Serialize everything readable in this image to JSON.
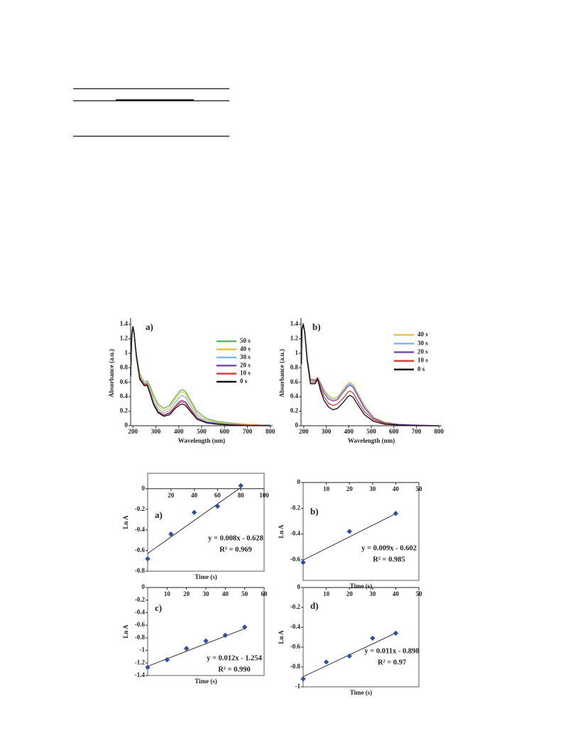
{
  "chart_data": [
    {
      "type": "line",
      "title": "a)",
      "x_label": "Wavelength (nm)",
      "y_label": "Absorbance (a.u.)",
      "x": [
        190,
        195,
        200,
        205,
        215,
        230,
        250,
        262,
        275,
        290,
        310,
        335,
        360,
        385,
        405,
        415,
        430,
        450,
        480,
        520,
        570,
        620,
        700,
        800
      ],
      "xlim": [
        190,
        810
      ],
      "xticks": [
        200,
        300,
        400,
        500,
        600,
        700,
        800
      ],
      "ylim": [
        0,
        1.45
      ],
      "yticks": [
        0,
        0.2,
        0.4,
        0.6,
        0.8,
        1,
        1.2,
        1.4
      ],
      "series": [
        {
          "name": "50 s",
          "color": "#5cb85c",
          "values": [
            0.75,
            1.3,
            1.38,
            1.3,
            1.0,
            0.72,
            0.6,
            0.62,
            0.55,
            0.42,
            0.3,
            0.24,
            0.28,
            0.4,
            0.48,
            0.5,
            0.47,
            0.36,
            0.2,
            0.1,
            0.06,
            0.04,
            0.02,
            0.01
          ]
        },
        {
          "name": "40 s",
          "color": "#e3c447",
          "values": [
            0.72,
            1.28,
            1.38,
            1.3,
            1.0,
            0.7,
            0.6,
            0.6,
            0.52,
            0.38,
            0.27,
            0.21,
            0.25,
            0.37,
            0.45,
            0.47,
            0.44,
            0.33,
            0.17,
            0.08,
            0.05,
            0.03,
            0.02,
            0.01
          ]
        },
        {
          "name": "30 s",
          "color": "#86b8e6",
          "values": [
            0.7,
            1.26,
            1.38,
            1.3,
            0.98,
            0.68,
            0.58,
            0.58,
            0.49,
            0.34,
            0.23,
            0.18,
            0.21,
            0.32,
            0.4,
            0.42,
            0.39,
            0.29,
            0.14,
            0.06,
            0.04,
            0.02,
            0.01,
            0.01
          ]
        },
        {
          "name": "20 s",
          "color": "#7b4fa8",
          "values": [
            0.7,
            1.25,
            1.37,
            1.29,
            0.97,
            0.66,
            0.57,
            0.58,
            0.46,
            0.31,
            0.2,
            0.15,
            0.18,
            0.27,
            0.34,
            0.35,
            0.33,
            0.24,
            0.11,
            0.05,
            0.03,
            0.02,
            0.01,
            0
          ]
        },
        {
          "name": "10 s",
          "color": "#d9403a",
          "values": [
            0.69,
            1.24,
            1.37,
            1.28,
            0.96,
            0.65,
            0.56,
            0.57,
            0.45,
            0.3,
            0.19,
            0.14,
            0.17,
            0.26,
            0.32,
            0.33,
            0.31,
            0.22,
            0.1,
            0.04,
            0.02,
            0.01,
            0.01,
            0
          ]
        },
        {
          "name": "0 s",
          "color": "#111111",
          "values": [
            0.68,
            1.23,
            1.37,
            1.28,
            0.95,
            0.64,
            0.55,
            0.56,
            0.44,
            0.29,
            0.18,
            0.13,
            0.15,
            0.24,
            0.29,
            0.3,
            0.28,
            0.2,
            0.09,
            0.04,
            0.02,
            0.01,
            0,
            0
          ]
        }
      ]
    },
    {
      "type": "line",
      "title": "b)",
      "x_label": "Wavelength (nm)",
      "y_label": "Absorbance (a.u.)",
      "x": [
        190,
        192,
        198,
        205,
        215,
        230,
        250,
        262,
        275,
        290,
        310,
        330,
        350,
        375,
        395,
        405,
        420,
        440,
        470,
        510,
        560,
        620,
        700,
        800
      ],
      "xlim": [
        188,
        812
      ],
      "xticks": [
        200,
        300,
        400,
        500,
        600,
        700,
        800
      ],
      "ylim": [
        0,
        1.45
      ],
      "yticks": [
        0,
        0.2,
        0.4,
        0.6,
        0.8,
        1,
        1.2,
        1.4
      ],
      "series": [
        {
          "name": "40 s",
          "color": "#e3c447",
          "values": [
            0.9,
            1.35,
            1.42,
            1.3,
            0.95,
            0.65,
            0.64,
            0.67,
            0.6,
            0.5,
            0.42,
            0.38,
            0.4,
            0.5,
            0.58,
            0.6,
            0.57,
            0.45,
            0.28,
            0.12,
            0.05,
            0.02,
            0.01,
            0
          ]
        },
        {
          "name": "30 s",
          "color": "#86b8e6",
          "values": [
            0.9,
            1.35,
            1.42,
            1.3,
            0.95,
            0.64,
            0.63,
            0.66,
            0.58,
            0.48,
            0.4,
            0.36,
            0.38,
            0.48,
            0.56,
            0.58,
            0.55,
            0.43,
            0.26,
            0.11,
            0.04,
            0.02,
            0.01,
            0
          ]
        },
        {
          "name": "20 s",
          "color": "#7b4fa8",
          "values": [
            0.88,
            1.34,
            1.41,
            1.29,
            0.94,
            0.63,
            0.62,
            0.66,
            0.56,
            0.45,
            0.37,
            0.34,
            0.36,
            0.46,
            0.54,
            0.56,
            0.53,
            0.41,
            0.24,
            0.1,
            0.04,
            0.02,
            0.01,
            0
          ]
        },
        {
          "name": "10 s",
          "color": "#d9403a",
          "values": [
            0.86,
            1.33,
            1.4,
            1.28,
            0.92,
            0.6,
            0.6,
            0.65,
            0.52,
            0.4,
            0.31,
            0.28,
            0.3,
            0.38,
            0.46,
            0.48,
            0.45,
            0.34,
            0.19,
            0.08,
            0.03,
            0.01,
            0,
            0
          ]
        },
        {
          "name": "0 s",
          "color": "#111111",
          "values": [
            0.85,
            1.32,
            1.4,
            1.27,
            0.9,
            0.58,
            0.58,
            0.64,
            0.48,
            0.35,
            0.26,
            0.22,
            0.24,
            0.32,
            0.4,
            0.42,
            0.39,
            0.29,
            0.15,
            0.06,
            0.02,
            0.01,
            0,
            0
          ]
        }
      ]
    },
    {
      "type": "scatter",
      "title": "a)",
      "x_label": "Time (s)",
      "y_label": "Ln A",
      "color": "#2f4fa0",
      "x": [
        0,
        20,
        40,
        60,
        80
      ],
      "values": [
        -0.68,
        -0.44,
        -0.23,
        -0.17,
        0.03
      ],
      "xlim": [
        0,
        100
      ],
      "xticks": [
        20,
        40,
        60,
        80,
        100
      ],
      "ylim": [
        -0.8,
        0.15
      ],
      "yticks": [
        0,
        -0.2,
        -0.4,
        -0.6,
        -0.8
      ],
      "fit": {
        "slope": 0.008,
        "intercept": -0.628,
        "label": "y = 0.008x - 0.628"
      },
      "r2_label": "R² = 0.969"
    },
    {
      "type": "scatter",
      "title": "b)",
      "x_label": "Time (s)",
      "y_label": "Ln A",
      "color": "#2f4fa0",
      "x": [
        0,
        20,
        40
      ],
      "values": [
        -0.62,
        -0.38,
        -0.24
      ],
      "xlim": [
        0,
        50
      ],
      "xticks": [
        10,
        20,
        30,
        40,
        50
      ],
      "ylim": [
        -0.76,
        0
      ],
      "yticks": [
        0,
        -0.2,
        -0.4,
        -0.6
      ],
      "fit": {
        "slope": 0.009,
        "intercept": -0.602,
        "label": "y = 0.009x - 0.602"
      },
      "r2_label": "R² = 0.985"
    },
    {
      "type": "scatter",
      "title": "c)",
      "x_label": "Time (s)",
      "y_label": "Ln A",
      "color": "#2f4fa0",
      "x": [
        0,
        10,
        20,
        30,
        40,
        50
      ],
      "values": [
        -1.27,
        -1.15,
        -0.97,
        -0.85,
        -0.76,
        -0.63
      ],
      "xlim": [
        0,
        60
      ],
      "xticks": [
        10,
        20,
        30,
        40,
        50,
        60
      ],
      "ylim": [
        -1.4,
        0
      ],
      "yticks": [
        0,
        -0.2,
        -0.4,
        -0.6,
        -0.8,
        -1,
        -1.2,
        -1.4
      ],
      "fit": {
        "slope": 0.012,
        "intercept": -1.254,
        "label": "y = 0.012x - 1.254"
      },
      "r2_label": "R² = 0.990"
    },
    {
      "type": "scatter",
      "title": "d)",
      "x_label": "Time (s)",
      "y_label": "Ln A",
      "color": "#2f4fa0",
      "x": [
        0,
        10,
        20,
        30,
        40
      ],
      "values": [
        -0.92,
        -0.75,
        -0.69,
        -0.51,
        -0.46
      ],
      "xlim": [
        0,
        50
      ],
      "xticks": [
        10,
        20,
        30,
        40,
        50
      ],
      "ylim": [
        -1,
        0
      ],
      "yticks": [
        0,
        -0.2,
        -0.4,
        -0.6,
        -0.8,
        -1
      ],
      "fit": {
        "slope": 0.011,
        "intercept": -0.898,
        "label": "y = 0.011x - 0.898"
      },
      "r2_label": "R² = 0.97"
    }
  ]
}
